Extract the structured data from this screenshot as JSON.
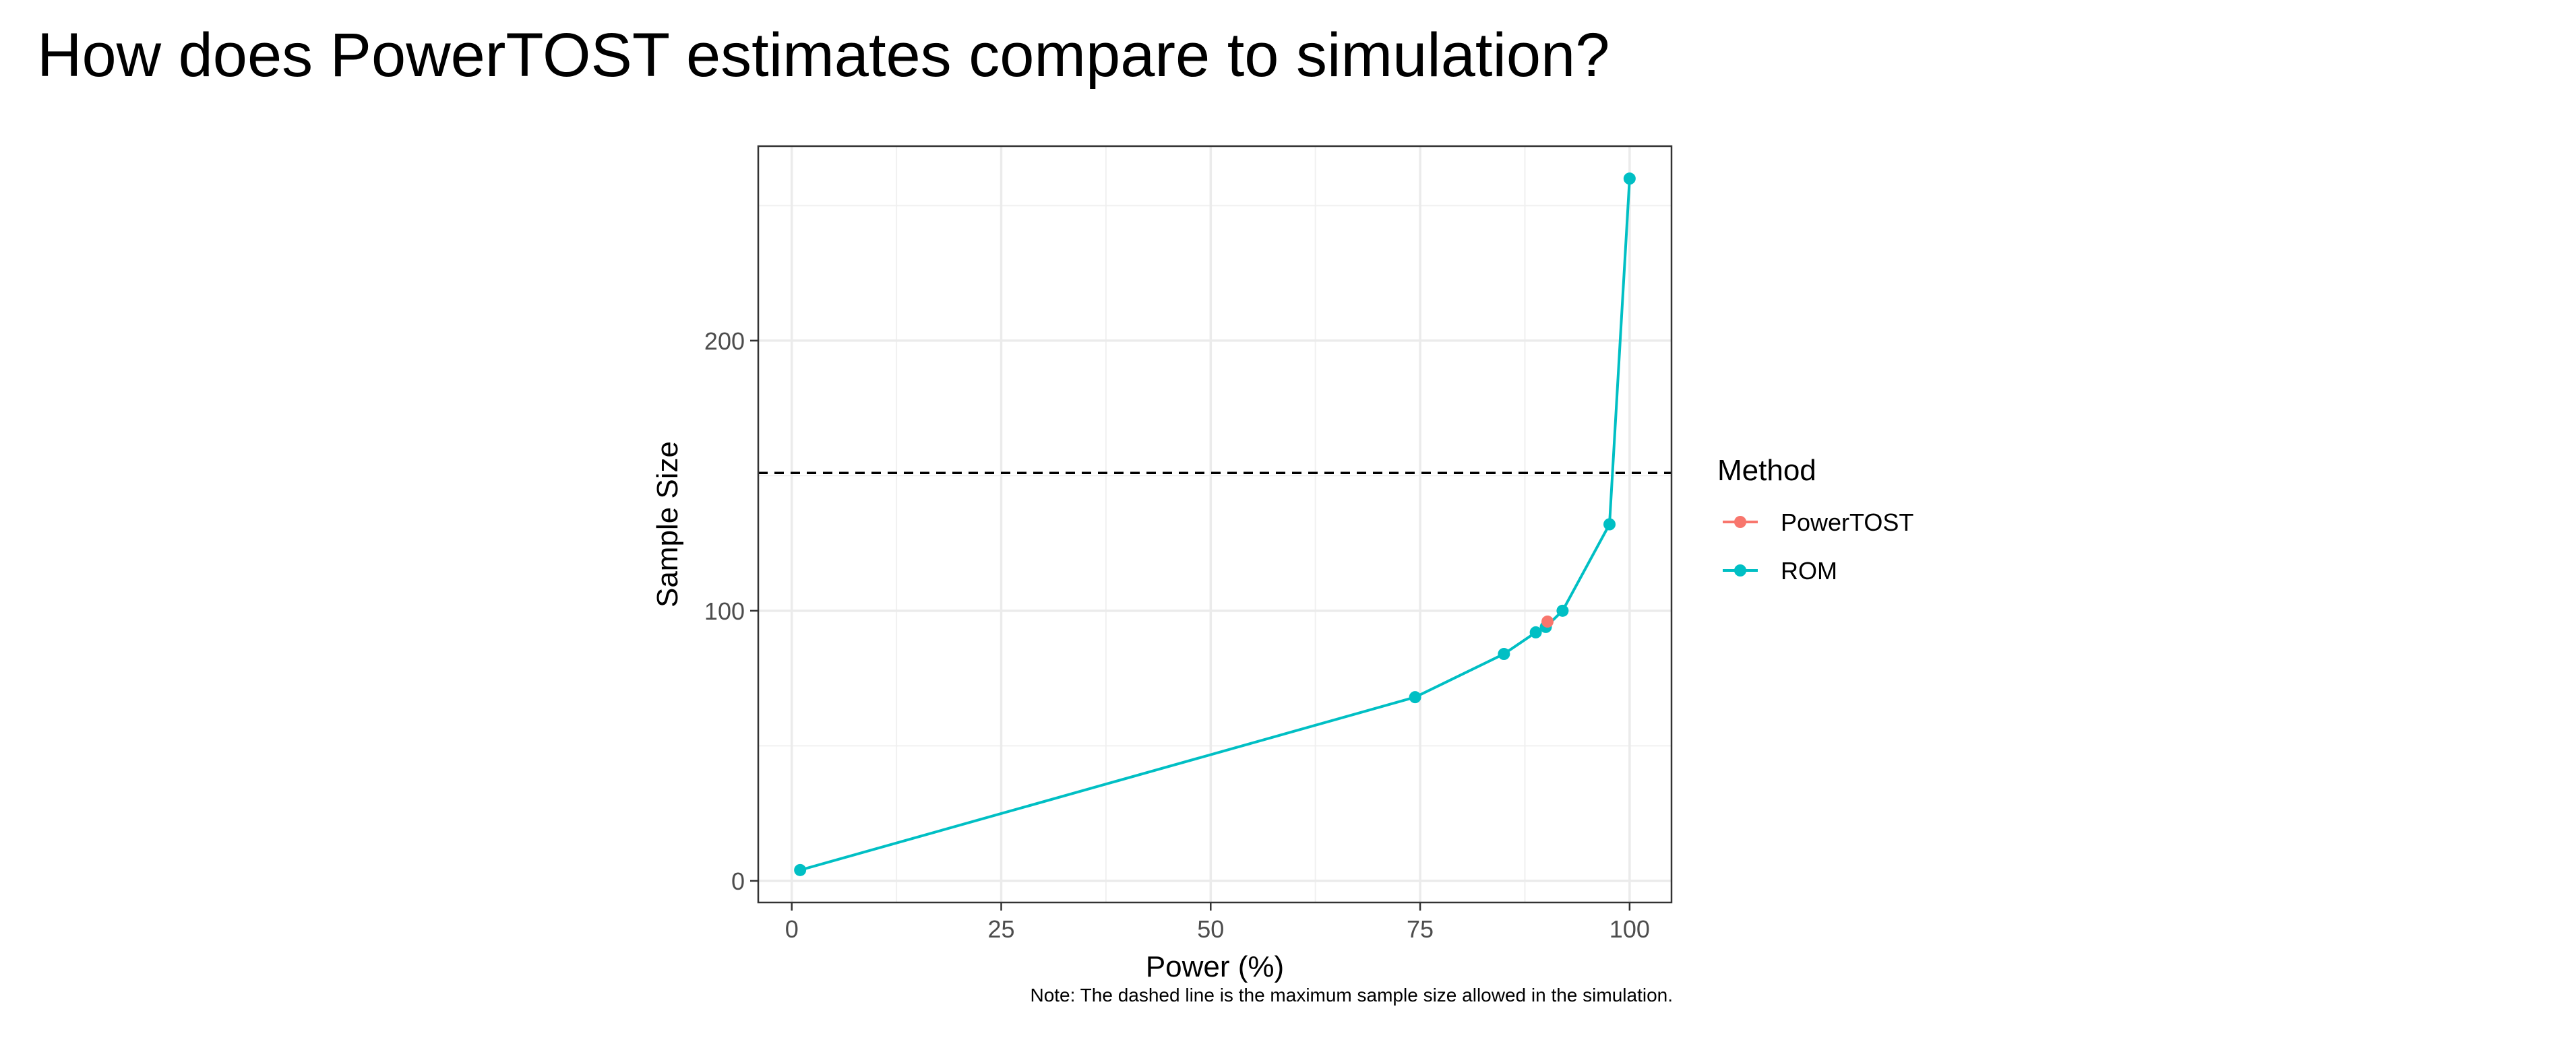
{
  "slide": {
    "title": "How does PowerTOST estimates compare to simulation?",
    "note": "Note: The dashed line is the maximum sample size allowed in the simulation."
  },
  "chart_data": {
    "type": "line",
    "title": "",
    "xlabel": "Power (%)",
    "ylabel": "Sample Size",
    "xlim": [
      -4,
      105
    ],
    "ylim": [
      -8,
      272
    ],
    "x_ticks": [
      0,
      25,
      50,
      75,
      100
    ],
    "y_ticks": [
      0,
      100,
      200
    ],
    "grid": true,
    "legend": {
      "title": "Method",
      "position": "right"
    },
    "reference_line": {
      "type": "hline",
      "y": 151,
      "style": "dashed",
      "color": "#000000"
    },
    "series": [
      {
        "name": "PowerTOST",
        "color": "#F8766D",
        "points": [
          {
            "x": 90.2,
            "y": 96
          }
        ]
      },
      {
        "name": "ROM",
        "color": "#00BFC4",
        "points": [
          {
            "x": 1,
            "y": 4
          },
          {
            "x": 74.4,
            "y": 68
          },
          {
            "x": 85,
            "y": 84
          },
          {
            "x": 88.8,
            "y": 92
          },
          {
            "x": 90,
            "y": 94
          },
          {
            "x": 92,
            "y": 100
          },
          {
            "x": 97.6,
            "y": 132
          },
          {
            "x": 100,
            "y": 260
          }
        ]
      }
    ]
  }
}
